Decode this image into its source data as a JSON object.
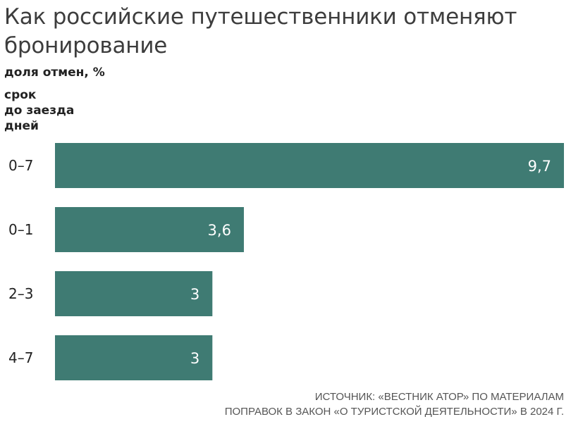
{
  "title": "Как российские путешественники отменяют бронирование",
  "subtitle": "доля отмен, %",
  "ylabel_lines": [
    "срок",
    "до заезда",
    "дней"
  ],
  "source_lines": [
    "ИСТОЧНИК: «ВЕСТНИК АТОР» ПО МАТЕРИАЛАМ",
    "ПОПРАВОК В ЗАКОН «О ТУРИСТСКОЙ ДЕЯТЕЛЬНОСТИ» В 2024 Г."
  ],
  "colors": {
    "bar": "#3f7b73",
    "value_outside": "#3f7b73",
    "value_inside": "#ffffff",
    "category_text": "#222222"
  },
  "chart_data": {
    "type": "bar",
    "orientation": "horizontal",
    "title": "Как российские путешественники отменяют бронирование",
    "subtitle": "доля отмен, %",
    "ylabel": "срок до заезда дней",
    "categories": [
      "0–7",
      "0–1",
      "2–3",
      "4–7"
    ],
    "values": [
      9.7,
      3.6,
      3,
      3
    ],
    "value_labels": [
      "9,7",
      "3,6",
      "3",
      "3"
    ],
    "xlim": [
      0,
      9.7
    ],
    "grid": false,
    "legend": "none"
  }
}
